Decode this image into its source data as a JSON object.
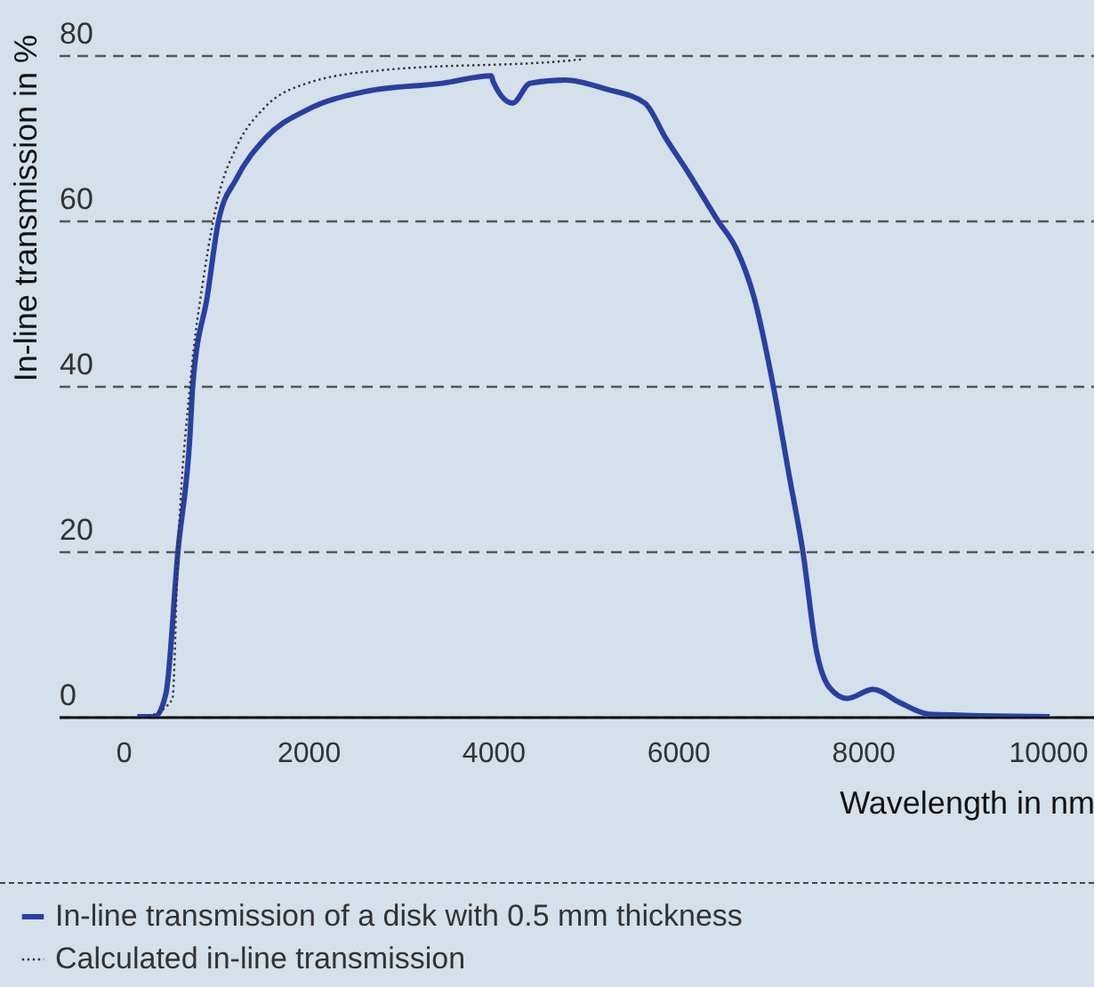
{
  "chart_data": {
    "type": "line",
    "xlabel": "Wavelength in nm",
    "ylabel": "In-line transmission in %",
    "xlim": [
      -700,
      10500
    ],
    "xticks": [
      0,
      2000,
      4000,
      6000,
      8000,
      10000
    ],
    "ylim": [
      0,
      80
    ],
    "yticks": [
      0,
      20,
      40,
      60,
      80
    ],
    "grid": "y",
    "legend": "bottom",
    "line_style": "solid",
    "series": [
      {
        "name": "In-line transmission of a disk with 0.5 mm thickness",
        "color": "#2a3f9f",
        "x": [
          150,
          340,
          460,
          590,
          720,
          750,
          910,
          1030,
          1220,
          1540,
          1990,
          2620,
          3450,
          3980,
          4000,
          4210,
          4400,
          4780,
          5220,
          5640,
          5870,
          6110,
          6430,
          6630,
          6820,
          7030,
          7200,
          7350,
          7500,
          7640,
          7830,
          8110,
          8400,
          8720,
          10020
        ],
        "values": [
          0,
          0,
          2.8,
          20,
          34,
          40,
          51,
          60,
          65,
          70,
          73.4,
          75.6,
          76.6,
          77.5,
          76.8,
          74.2,
          76.6,
          77,
          75.9,
          74.2,
          69.9,
          65.8,
          60,
          56.6,
          50.8,
          40,
          29.3,
          20,
          7.8,
          3.5,
          2.2,
          3.3,
          1.7,
          0.3,
          0
        ]
      },
      {
        "name": "Calculated in-line transmission",
        "color": "#333333",
        "line_style": "dotted",
        "x": [
          270,
          530,
          590,
          720,
          880,
          1030,
          1220,
          1540,
          1990,
          2820,
          4780,
          4970
        ],
        "values": [
          0,
          2.1,
          20,
          40,
          54,
          63,
          68.8,
          73.8,
          76.6,
          78.2,
          79.3,
          79.5
        ]
      }
    ]
  }
}
